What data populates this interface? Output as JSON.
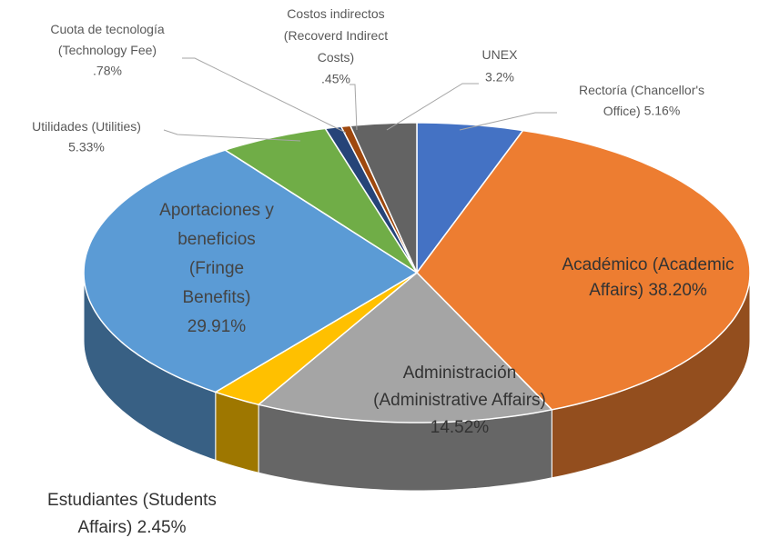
{
  "chart_data": {
    "type": "pie3d",
    "categories": [
      "Rectoría (Chancellor's Office)",
      "Académico (Academic Affairs)",
      "Administración (Administrative Affairs)",
      "Estudiantes (Students Affairs)",
      "Aportaciones y beneficios (Fringe Benefits)",
      "Utilidades (Utilities)",
      "Cuota de tecnología (Technology Fee)",
      "Costos indirectos (Recoverd Indirect Costs)",
      "UNEX"
    ],
    "values": [
      5.16,
      38.2,
      14.52,
      2.45,
      29.91,
      5.33,
      0.78,
      0.45,
      3.2
    ],
    "value_labels": [
      "5.16%",
      "38.20%",
      "14.52%",
      "2.45%",
      "29.91%",
      "5.33%",
      ".78%",
      ".45%",
      "3.2%"
    ],
    "colors": [
      "#4472c4",
      "#ed7d31",
      "#a5a5a5",
      "#ffc000",
      "#5b9bd5",
      "#70ad47",
      "#264478",
      "#9e480e",
      "#636363"
    ]
  }
}
